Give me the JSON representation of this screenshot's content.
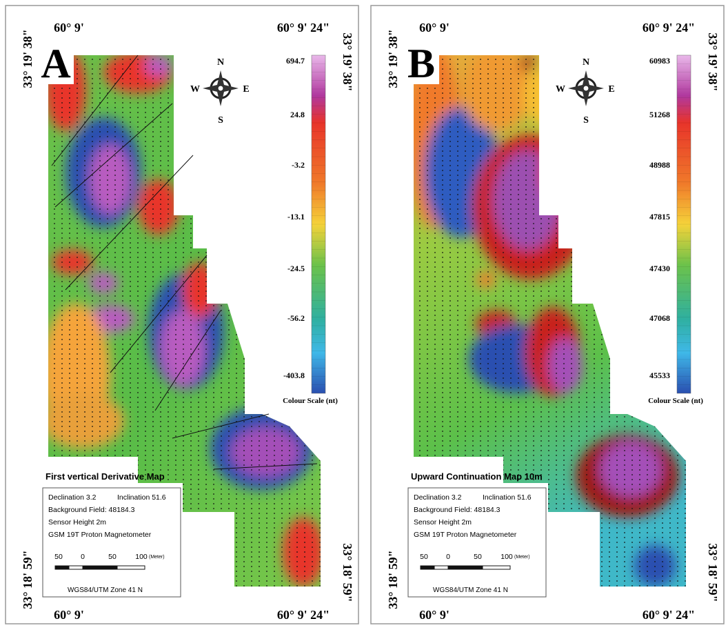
{
  "panels": [
    {
      "label": "A",
      "title": "First vertical Derivative Map",
      "top_left": "60° 9'",
      "top_right": "60° 9' 24\"",
      "bottom_left": "60° 9'",
      "bottom_right": "60° 9' 24\"",
      "left_top": "33° 19' 38\"",
      "left_bottom": "33° 18' 59\"",
      "right_top": "33° 19' 38\"",
      "right_bottom": "33° 18' 59\"",
      "compass": {
        "n": "N",
        "w": "W",
        "e": "E",
        "s": "S"
      },
      "colour_scale": {
        "labels": [
          694.7,
          24.8,
          -3.2,
          -13.1,
          -24.5,
          -56.2,
          -403.8
        ],
        "caption": "Colour Scale (nt)"
      },
      "info": [
        "Declination 3.2",
        "Inclination 51.6",
        "Background Field: 48184.3",
        "Sensor Height 2m",
        "GSM 19T Proton Magnetometer"
      ],
      "scale_bar": {
        "labels": [
          50,
          0,
          50,
          100
        ],
        "unit": "(Meter)"
      },
      "projection": "WGS84/UTM Zone 41 N"
    },
    {
      "label": "B",
      "title": "Upward Continuation Map 10m",
      "top_left": "60° 9'",
      "top_right": "60° 9' 24\"",
      "bottom_left": "60° 9'",
      "bottom_right": "60° 9' 24\"",
      "left_top": "33° 19' 38\"",
      "left_bottom": "33° 18' 59\"",
      "right_top": "33° 19' 38\"",
      "right_bottom": "33° 18' 59\"",
      "compass": {
        "n": "N",
        "w": "W",
        "e": "E",
        "s": "S"
      },
      "colour_scale": {
        "labels": [
          60983,
          51268,
          48988,
          47815,
          47430,
          47068,
          45533
        ],
        "caption": "Colour Scale (nt)"
      },
      "info": [
        "Declination 3.2",
        "Inclination 51.6",
        "Background Field: 48184.3",
        "Sensor Height 2m",
        "GSM 19T Proton Magnetometer"
      ],
      "scale_bar": {
        "labels": [
          50,
          0,
          50,
          100
        ],
        "unit": "(Meter)"
      },
      "projection": "WGS84/UTM Zone 41 N"
    }
  ]
}
